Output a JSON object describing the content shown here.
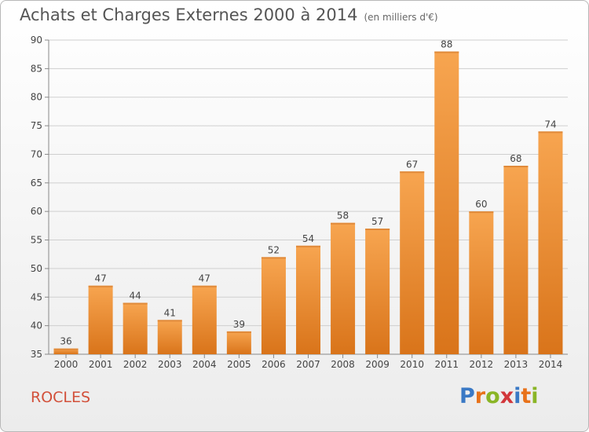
{
  "header": {
    "title": "Achats et Charges Externes 2000 à 2014",
    "unit": "(en milliers d'€)"
  },
  "footer": {
    "commune": "ROCLES",
    "logo_letters": [
      "P",
      "r",
      "o",
      "x",
      "i",
      "t",
      "i"
    ],
    "logo_colors": [
      "#3a79c5",
      "#e8721a",
      "#8ab526",
      "#d2373b",
      "#3a79c5",
      "#e8721a",
      "#8ab526"
    ]
  },
  "colors": {
    "bar_light": "#f7a550",
    "bar_dark": "#d9741a",
    "grid": "#cfcfcf",
    "axis": "#888888",
    "text": "#444444"
  },
  "chart_data": {
    "type": "bar",
    "categories": [
      "2000",
      "2001",
      "2002",
      "2003",
      "2004",
      "2005",
      "2006",
      "2007",
      "2008",
      "2009",
      "2010",
      "2011",
      "2012",
      "2013",
      "2014"
    ],
    "values": [
      36,
      47,
      44,
      41,
      47,
      39,
      52,
      54,
      58,
      57,
      67,
      88,
      60,
      68,
      74
    ],
    "ylim": [
      35,
      90
    ],
    "yticks": [
      35,
      40,
      45,
      50,
      55,
      60,
      65,
      70,
      75,
      80,
      85,
      90
    ],
    "grid": true,
    "title": "Achats et Charges Externes 2000 à 2014",
    "xlabel": "",
    "ylabel": ""
  }
}
